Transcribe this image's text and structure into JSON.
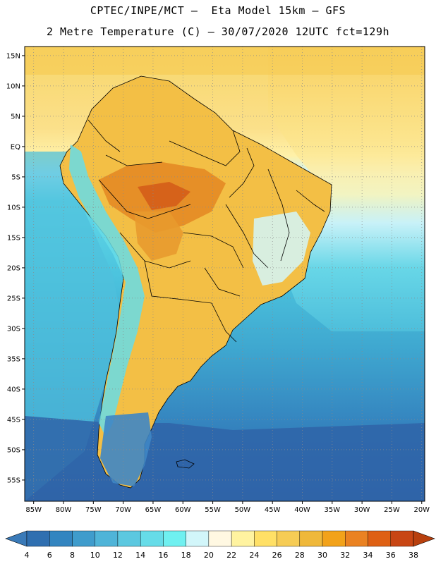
{
  "header": {
    "line1": "CPTEC/INPE/MCT –  Eta Model 15km – GFS",
    "line2": "2 Metre Temperature (C) – 30/07/2020 12UTC fct=129h"
  },
  "map": {
    "lat_range": [
      -58.5,
      16.5
    ],
    "lon_range": [
      -86.5,
      -19.5
    ],
    "lat_ticks": [
      {
        "value": 15,
        "label": "15N"
      },
      {
        "value": 10,
        "label": "10N"
      },
      {
        "value": 5,
        "label": "5N"
      },
      {
        "value": 0,
        "label": "EQ"
      },
      {
        "value": -5,
        "label": "5S"
      },
      {
        "value": -10,
        "label": "10S"
      },
      {
        "value": -15,
        "label": "15S"
      },
      {
        "value": -20,
        "label": "20S"
      },
      {
        "value": -25,
        "label": "25S"
      },
      {
        "value": -30,
        "label": "30S"
      },
      {
        "value": -35,
        "label": "35S"
      },
      {
        "value": -40,
        "label": "40S"
      },
      {
        "value": -45,
        "label": "45S"
      },
      {
        "value": -50,
        "label": "50S"
      },
      {
        "value": -55,
        "label": "55S"
      }
    ],
    "lon_ticks": [
      {
        "value": -85,
        "label": "85W"
      },
      {
        "value": -80,
        "label": "80W"
      },
      {
        "value": -75,
        "label": "75W"
      },
      {
        "value": -70,
        "label": "70W"
      },
      {
        "value": -65,
        "label": "65W"
      },
      {
        "value": -60,
        "label": "60W"
      },
      {
        "value": -55,
        "label": "55W"
      },
      {
        "value": -50,
        "label": "50W"
      },
      {
        "value": -45,
        "label": "45W"
      },
      {
        "value": -40,
        "label": "40W"
      },
      {
        "value": -35,
        "label": "35W"
      },
      {
        "value": -30,
        "label": "30W"
      },
      {
        "value": -25,
        "label": "25W"
      },
      {
        "value": -20,
        "label": "20W"
      }
    ]
  },
  "colorbar": {
    "labels": [
      "4",
      "6",
      "8",
      "10",
      "12",
      "14",
      "16",
      "18",
      "20",
      "22",
      "24",
      "26",
      "28",
      "30",
      "32",
      "34",
      "36",
      "38"
    ],
    "colors": [
      "#3a7ab8",
      "#2f6fb0",
      "#3385c0",
      "#3f9ccc",
      "#4fb4d8",
      "#5cc8e0",
      "#66dce8",
      "#6ff0f0",
      "#d2f6fa",
      "#fff8e2",
      "#fff3a0",
      "#ffe066",
      "#f6cc55",
      "#efb83a",
      "#f2a21a",
      "#ea8222",
      "#de6014",
      "#c84614",
      "#b8400e"
    ]
  },
  "colors": {
    "ocean_south": "#2f64a8",
    "ocean_mid": "#3fa8d0",
    "ocean_cyan": "#5cd4e6",
    "ocean_light": "#cdf4fa",
    "warm_pale": "#fde98e",
    "warm": "#f3bf45",
    "hot": "#e58c26",
    "hottest": "#d6621a"
  }
}
